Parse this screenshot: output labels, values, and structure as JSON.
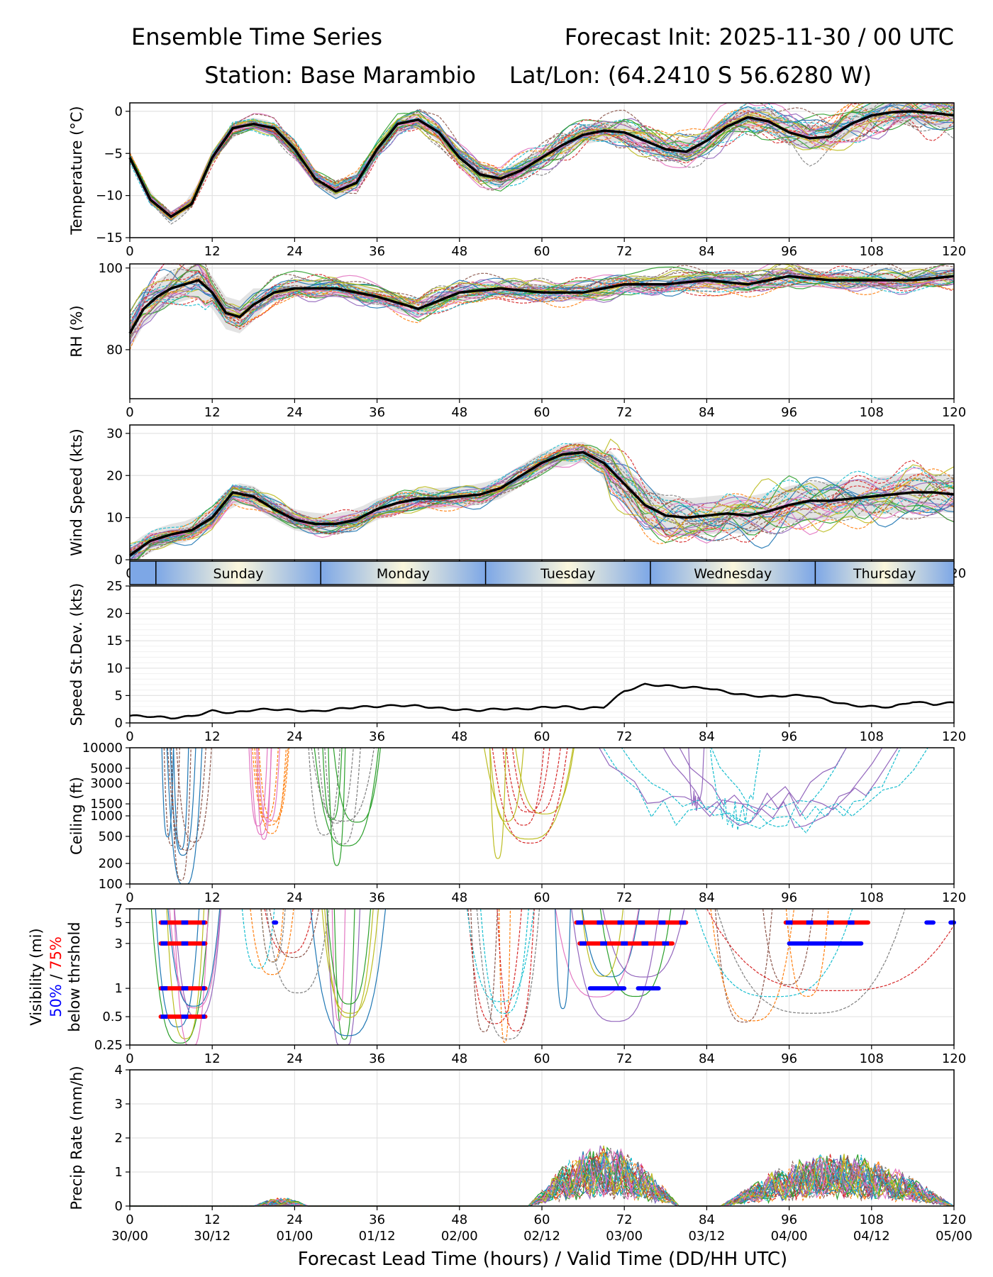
{
  "header": {
    "title": "Ensemble Time Series",
    "forecast_init": "Forecast Init: 2025-11-30 / 00 UTC",
    "station": "Station: Base Marambio",
    "latlon": "Lat/Lon: (64.2410 S 56.6280 W)"
  },
  "colors": {
    "mean_line": "#000000",
    "spread": "#cccccc",
    "pct50": "#0000ff",
    "pct75": "#ff0000",
    "members": [
      "#1f77b4",
      "#ff7f0e",
      "#2ca02c",
      "#d62728",
      "#9467bd",
      "#8c564b",
      "#e377c2",
      "#7f7f7f",
      "#bcbd22",
      "#17becf"
    ]
  },
  "x_axis": {
    "ticks": [
      0,
      12,
      24,
      36,
      48,
      60,
      72,
      84,
      96,
      108,
      120
    ],
    "tick_labels": [
      "0",
      "12",
      "24",
      "36",
      "48",
      "60",
      "72",
      "84",
      "96",
      "108",
      "120"
    ],
    "valid_labels": [
      "30/00",
      "30/12",
      "01/00",
      "01/12",
      "02/00",
      "02/12",
      "03/00",
      "03/12",
      "04/00",
      "04/12",
      "05/00"
    ],
    "xlabel": "Forecast Lead Time (hours) / Valid Time (DD/HH UTC)"
  },
  "day_band": {
    "labels": [
      "Sunday",
      "Monday",
      "Tuesday",
      "Wednesday",
      "Thursday"
    ],
    "boundaries_hours": [
      3.8,
      27.8,
      51.8,
      75.8,
      99.8
    ]
  },
  "chart_data": [
    {
      "type": "line",
      "name": "temperature",
      "ylabel": "Temperature (°C)",
      "ylim": [
        -15,
        1
      ],
      "yticks": [
        -15,
        -10,
        -5,
        0
      ],
      "ytick_labels": [
        "−15",
        "−10",
        "−5",
        "0"
      ],
      "mean": {
        "x": [
          0,
          3,
          6,
          9,
          12,
          15,
          18,
          21,
          24,
          27,
          30,
          33,
          36,
          39,
          42,
          45,
          48,
          51,
          54,
          57,
          60,
          63,
          66,
          69,
          72,
          75,
          78,
          81,
          84,
          87,
          90,
          93,
          96,
          99,
          102,
          105,
          108,
          111,
          114,
          117,
          120
        ],
        "y": [
          -5.5,
          -10.5,
          -12.5,
          -11,
          -5.5,
          -2,
          -1.5,
          -2,
          -4.5,
          -8,
          -9.5,
          -8.5,
          -4.5,
          -1.5,
          -1,
          -2.5,
          -5.5,
          -7.5,
          -8,
          -7,
          -5.5,
          -4,
          -2.8,
          -2.3,
          -2.5,
          -3.5,
          -4.5,
          -4.8,
          -3.5,
          -1.8,
          -0.7,
          -1.2,
          -2.5,
          -3.2,
          -3.0,
          -1.5,
          -0.5,
          -0.1,
          0,
          -0.2,
          -0.5
        ]
      }
    },
    {
      "type": "line",
      "name": "relative_humidity",
      "ylabel": "RH (%)",
      "ylim": [
        68,
        101
      ],
      "yticks": [
        80,
        100
      ],
      "ytick_labels": [
        "80",
        "100"
      ],
      "mean": {
        "x": [
          0,
          2,
          4,
          6,
          8,
          10,
          12,
          14,
          16,
          18,
          21,
          24,
          30,
          36,
          42,
          48,
          54,
          60,
          66,
          72,
          78,
          84,
          90,
          96,
          102,
          108,
          114,
          120
        ],
        "y": [
          84,
          90,
          93,
          95,
          96,
          97,
          94,
          89,
          88,
          91,
          94,
          95,
          95,
          93,
          90,
          94,
          95,
          94,
          94,
          96,
          96,
          97,
          96,
          98,
          97,
          97,
          97,
          98
        ]
      }
    },
    {
      "type": "line",
      "name": "wind_speed",
      "ylabel": "Wind Speed (kts)",
      "ylim": [
        0,
        32
      ],
      "yticks": [
        0,
        10,
        20,
        30
      ],
      "ytick_labels": [
        "0",
        "10",
        "20",
        "30"
      ],
      "mean": {
        "x": [
          0,
          3,
          6,
          9,
          12,
          15,
          18,
          21,
          24,
          27,
          30,
          33,
          36,
          39,
          42,
          45,
          48,
          51,
          54,
          57,
          60,
          63,
          66,
          69,
          72,
          75,
          78,
          81,
          84,
          87,
          90,
          93,
          96,
          99,
          102,
          105,
          108,
          111,
          114,
          117,
          120
        ],
        "y": [
          1,
          4.5,
          6,
          7,
          10,
          16,
          15,
          12,
          9.5,
          8.5,
          8.5,
          9.5,
          12,
          13.5,
          14.5,
          14.5,
          15,
          15.5,
          17,
          20,
          23,
          25,
          25.5,
          23,
          18,
          13,
          10.5,
          10,
          10.5,
          11,
          10.5,
          11.5,
          13,
          14,
          14,
          14.5,
          15,
          15.5,
          16,
          16,
          15.5
        ]
      }
    },
    {
      "type": "line",
      "name": "speed_std_dev",
      "ylabel": "Speed St.Dev. (kts)",
      "ylim": [
        0,
        25
      ],
      "yticks": [
        0,
        5,
        10,
        15,
        20,
        25
      ],
      "ytick_labels": [
        "0",
        "5",
        "10",
        "15",
        "20",
        "25"
      ],
      "series": {
        "x": [
          0,
          3,
          6,
          9,
          12,
          15,
          18,
          21,
          24,
          27,
          30,
          33,
          36,
          39,
          42,
          45,
          48,
          51,
          54,
          57,
          60,
          63,
          66,
          69,
          72,
          75,
          78,
          81,
          84,
          87,
          90,
          93,
          96,
          99,
          102,
          105,
          108,
          111,
          114,
          117,
          120
        ],
        "y": [
          1.3,
          1.2,
          0.9,
          1.2,
          2.2,
          1.8,
          2.4,
          2.5,
          2.3,
          2.1,
          2.5,
          2.9,
          3.0,
          3.2,
          3.1,
          2.7,
          2.4,
          2.3,
          2.6,
          2.5,
          2.8,
          3.0,
          2.6,
          2.9,
          5.8,
          7.0,
          6.8,
          6.5,
          6.4,
          5.6,
          5.0,
          4.8,
          5.0,
          5.0,
          4.0,
          3.2,
          3.0,
          2.9,
          3.9,
          3.4,
          3.7
        ]
      }
    },
    {
      "type": "line",
      "name": "ceiling",
      "ylabel": "Ceiling (ft)",
      "yscale": "log",
      "ylim": [
        100,
        10000
      ],
      "yticks": [
        100,
        200,
        500,
        1000,
        1500,
        3000,
        5000,
        10000
      ],
      "ytick_labels": [
        "100",
        "200",
        "500",
        "1000",
        "1500",
        "3000",
        "5000",
        "10000"
      ]
    },
    {
      "type": "line",
      "name": "visibility",
      "ylabel": "Visibility (mi)",
      "ylabel_50": "50%",
      "ylabel_sep": "/",
      "ylabel_75": "75%",
      "ylabel_below": "below thrshold",
      "yscale": "log",
      "ylim": [
        0.25,
        7
      ],
      "yticks": [
        0.25,
        0.5,
        1,
        3,
        5,
        7
      ],
      "ytick_labels": [
        "0.25",
        "0.5",
        "1",
        "3",
        "5",
        "7"
      ],
      "threshold_bars": [
        {
          "level": 5,
          "x0": 4.5,
          "x1": 11,
          "kind": "75"
        },
        {
          "level": 3,
          "x0": 4.5,
          "x1": 11,
          "kind": "75"
        },
        {
          "level": 1,
          "x0": 4.5,
          "x1": 11,
          "kind": "75"
        },
        {
          "level": 0.5,
          "x0": 4.5,
          "x1": 11,
          "kind": "75"
        },
        {
          "level": 5,
          "x0": 21,
          "x1": 21.3,
          "kind": "50"
        },
        {
          "level": 5,
          "x0": 65,
          "x1": 81,
          "kind": "75"
        },
        {
          "level": 3,
          "x0": 65.5,
          "x1": 79,
          "kind": "75"
        },
        {
          "level": 1,
          "x0": 67,
          "x1": 72,
          "kind": "50"
        },
        {
          "level": 1,
          "x0": 74,
          "x1": 77,
          "kind": "50"
        },
        {
          "level": 5,
          "x0": 95.5,
          "x1": 107.5,
          "kind": "75"
        },
        {
          "level": 3,
          "x0": 96,
          "x1": 106.5,
          "kind": "50"
        },
        {
          "level": 5,
          "x0": 116,
          "x1": 117,
          "kind": "50"
        },
        {
          "level": 5,
          "x0": 119.5,
          "x1": 120,
          "kind": "50"
        }
      ]
    },
    {
      "type": "line",
      "name": "precip_rate",
      "ylabel": "Precip Rate (mm/h)",
      "ylim": [
        0,
        4
      ],
      "yticks": [
        0,
        1,
        2,
        3,
        4
      ],
      "ytick_labels": [
        "0",
        "1",
        "2",
        "3",
        "4"
      ]
    }
  ]
}
